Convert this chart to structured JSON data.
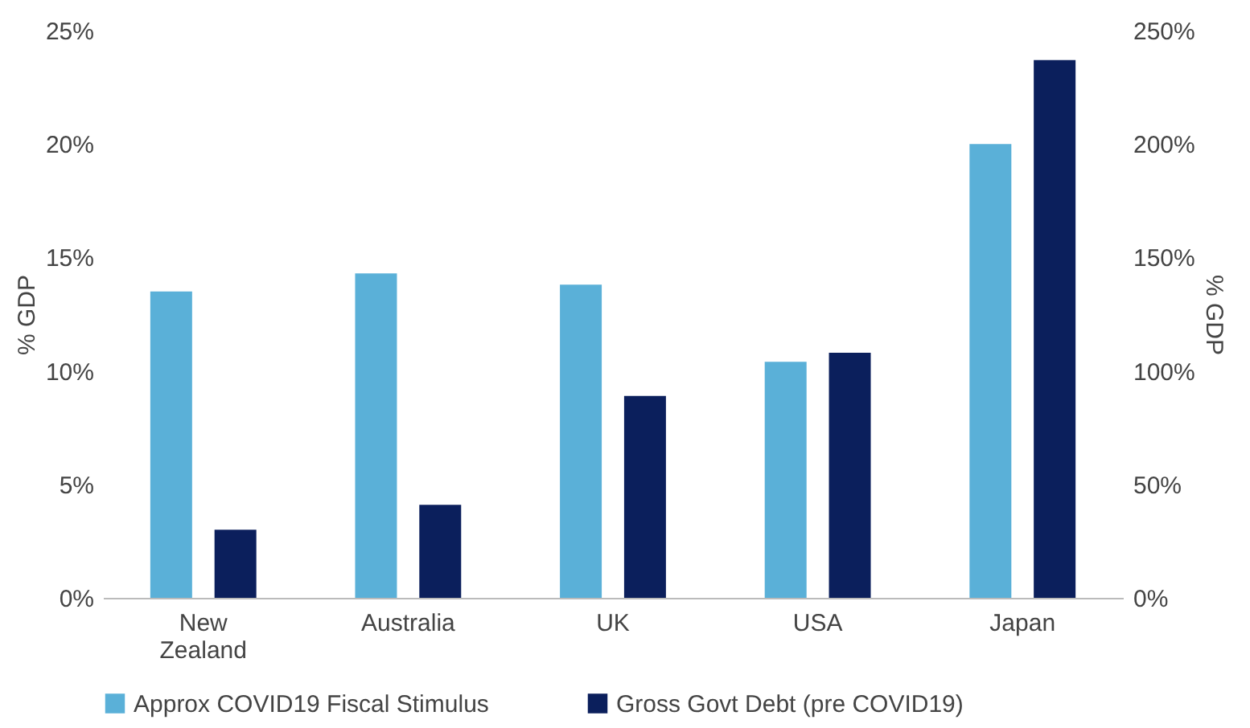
{
  "chart_data": {
    "type": "bar",
    "categories": [
      "New Zealand",
      "Australia",
      "UK",
      "USA",
      "Japan"
    ],
    "series": [
      {
        "name": "Approx COVID19 Fiscal Stimulus",
        "color": "#5ab0d8",
        "values": [
          13.5,
          14.3,
          13.8,
          10.4,
          20.0
        ]
      },
      {
        "name": "Gross Govt Debt (pre COVID19)",
        "color": "#0b1f5c",
        "axis": "y2",
        "values": [
          30,
          41,
          89,
          108,
          237
        ]
      }
    ],
    "ylabel": "% GDP",
    "y2label": "% GDP",
    "ylim": [
      0,
      25
    ],
    "yticks": [
      {
        "value": 0,
        "label": "0%"
      },
      {
        "value": 5,
        "label": "5%"
      },
      {
        "value": 10,
        "label": "10%"
      },
      {
        "value": 15,
        "label": "15%"
      },
      {
        "value": 20,
        "label": "20%"
      },
      {
        "value": 25,
        "label": "25%"
      }
    ],
    "y2lim": [
      0,
      250
    ],
    "y2ticks": [
      {
        "value": 0,
        "label": "0%"
      },
      {
        "value": 50,
        "label": "50%"
      },
      {
        "value": 100,
        "label": "100%"
      },
      {
        "value": 150,
        "label": "150%"
      },
      {
        "value": 200,
        "label": "200%"
      },
      {
        "value": 250,
        "label": "250%"
      }
    ],
    "grid": false,
    "legend": "bottom"
  }
}
